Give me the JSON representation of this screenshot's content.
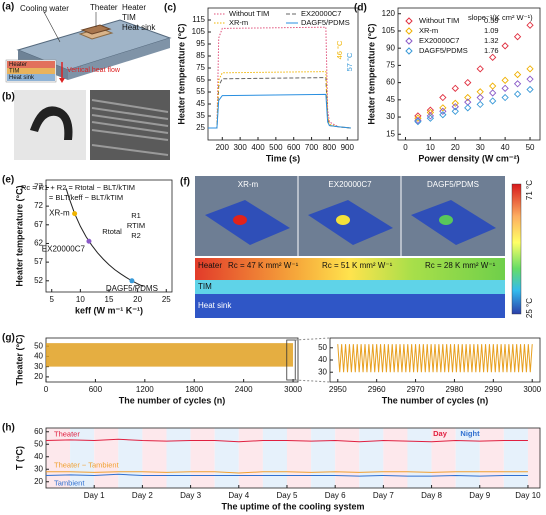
{
  "panels": {
    "a": {
      "label": "(a)",
      "cooling_water": "Cooling water",
      "t_heater": "Theater",
      "heater": "Heater",
      "tim": "TIM",
      "heat_sink": "Heat sink",
      "inset": [
        "Heater",
        "TIM",
        "Heat sink"
      ],
      "flow": "Vertical heat flow"
    },
    "b": {
      "label": "(b)"
    },
    "f": {
      "label": "(f)",
      "titles": [
        "XR-m",
        "EX20000C7",
        "DAGF5/PDMS"
      ],
      "max": "71 °C",
      "min": "25 °C",
      "layers": [
        "Heater",
        "TIM",
        "Heat sink"
      ],
      "rc": [
        "Rc = 47 K mm² W⁻¹",
        "Rc = 51 K mm² W⁻¹",
        "Rc = 28 K mm² W⁻¹"
      ]
    }
  },
  "chart_data": [
    {
      "type": "line",
      "panel": "(c)",
      "x_label": "Time (s)",
      "y_label": "Heater temperature (°C)",
      "xlim": [
        120,
        960
      ],
      "xticks": [
        200,
        300,
        400,
        500,
        600,
        700,
        800,
        900
      ],
      "ylim": [
        15,
        125
      ],
      "yticks": [
        25,
        35,
        45,
        55,
        65,
        75,
        85,
        95,
        105,
        115
      ],
      "legend": "top",
      "annotations": [
        "46 °C",
        "57 °C"
      ],
      "series": [
        {
          "name": "Without TIM",
          "color": "#e0507a",
          "dash": "dotted",
          "x": [
            120,
            170,
            180,
            200,
            780,
            790,
            800,
            850,
            920
          ],
          "values": [
            25,
            25,
            100,
            108,
            109,
            40,
            30,
            26,
            25
          ]
        },
        {
          "name": "EX20000C7",
          "color": "#666666",
          "dash": "dashed",
          "x": [
            120,
            170,
            180,
            200,
            780,
            790,
            800,
            850,
            920
          ],
          "values": [
            25,
            25,
            60,
            66,
            67,
            33,
            27,
            26,
            25
          ]
        },
        {
          "name": "XR-m",
          "color": "#f0b400",
          "dash": "dotted",
          "x": [
            120,
            170,
            180,
            200,
            780,
            790,
            800,
            850,
            920
          ],
          "values": [
            25,
            25,
            65,
            71,
            72,
            35,
            28,
            26,
            25
          ]
        },
        {
          "name": "DAGF5/PDMS",
          "color": "#2a8fe0",
          "dash": "solid",
          "x": [
            120,
            170,
            180,
            200,
            780,
            790,
            800,
            850,
            920
          ],
          "values": [
            25,
            25,
            48,
            52,
            53,
            30,
            27,
            26,
            25
          ]
        }
      ]
    },
    {
      "type": "scatter",
      "panel": "(d)",
      "x_label": "Power density (W cm⁻²)",
      "y_label": "Heater temperature (°C)",
      "xlim": [
        -3,
        54
      ],
      "xticks": [
        0,
        10,
        20,
        30,
        40,
        50
      ],
      "ylim": [
        10,
        125
      ],
      "yticks": [
        15,
        30,
        45,
        60,
        75,
        90,
        105,
        120
      ],
      "legend": "upper-left",
      "slope_title": "slope⁻¹(K cm² W⁻¹)",
      "slopes": [
        0.59,
        1.09,
        1.32,
        1.76
      ],
      "series": [
        {
          "name": "Without TIM",
          "color": "#e03040",
          "marker": "diamond",
          "x": [
            5,
            10,
            15,
            20,
            25,
            30,
            35,
            40,
            45,
            50
          ],
          "values": [
            31,
            36,
            47,
            55,
            60,
            72,
            82,
            92,
            100,
            110
          ]
        },
        {
          "name": "XR-m",
          "color": "#f0b000",
          "marker": "diamond",
          "x": [
            5,
            10,
            15,
            20,
            25,
            30,
            35,
            40,
            45,
            50
          ],
          "values": [
            29,
            34,
            38,
            42,
            47,
            52,
            57,
            62,
            67,
            72
          ]
        },
        {
          "name": "EX20000C7",
          "color": "#8a5ac8",
          "marker": "diamond",
          "x": [
            5,
            10,
            15,
            20,
            25,
            30,
            35,
            40,
            45,
            50
          ],
          "values": [
            27,
            31,
            35,
            39,
            43,
            47,
            51,
            55,
            59,
            63
          ]
        },
        {
          "name": "DAGF5/PDMS",
          "color": "#3a9ad8",
          "marker": "diamond",
          "x": [
            5,
            10,
            15,
            20,
            25,
            30,
            35,
            40,
            45,
            50
          ],
          "values": [
            26,
            29,
            32,
            35,
            38,
            41,
            44,
            47,
            50,
            54
          ]
        }
      ]
    },
    {
      "type": "scatter",
      "panel": "(e)",
      "x_label": "keff (W m⁻¹ K⁻¹)",
      "y_label": "Heater temperature (°C)",
      "xlim": [
        4,
        26
      ],
      "xticks": [
        5,
        10,
        15,
        20,
        25
      ],
      "ylim": [
        49,
        79
      ],
      "yticks": [
        52,
        57,
        62,
        67,
        72,
        77
      ],
      "legend": "points",
      "annotations": [
        "Rc = R1 + R2 = Rtotal − BLT/kTIM",
        "= BLT/keff − BLT/kTIM",
        "Rtotal",
        "R1",
        "RTIM",
        "R2"
      ],
      "series": [
        {
          "color": "#222222",
          "line": true,
          "x": [
            7.5,
            8,
            9,
            10,
            11,
            12,
            13,
            14,
            15,
            16,
            17,
            18,
            19,
            20,
            21
          ],
          "values": [
            76.8,
            74.3,
            70.0,
            66.6,
            63.8,
            61.5,
            59.5,
            57.8,
            56.3,
            55.0,
            53.9,
            52.9,
            52.0,
            51.2,
            50.5
          ]
        },
        {
          "name": "XR-m",
          "color": "#f0b400",
          "marker": "circle",
          "x": [
            9
          ],
          "values": [
            70
          ]
        },
        {
          "name": "EX20000C7",
          "color": "#8a5ac8",
          "marker": "circle",
          "x": [
            11.5
          ],
          "values": [
            62.6
          ]
        },
        {
          "name": "DAGF5/PDMS",
          "color": "#3a9ad8",
          "marker": "circle",
          "x": [
            19
          ],
          "values": [
            52
          ]
        }
      ]
    },
    {
      "type": "area",
      "panel": "(g)",
      "x_label": "The number of cycles (n)",
      "y_label": "Theater (°C)",
      "xlim": [
        0,
        3060
      ],
      "xticks": [
        0,
        600,
        1200,
        1800,
        2400,
        3000
      ],
      "ylim": [
        15,
        58
      ],
      "yticks": [
        20,
        30,
        40,
        50
      ],
      "series": [
        {
          "color": "#e0a020",
          "x": [
            0,
            3000
          ],
          "values": [
            53,
            53
          ],
          "low": [
            30,
            30
          ]
        }
      ]
    },
    {
      "type": "line",
      "x_label": "The number of cycles (n)",
      "xlim": [
        2948,
        3002
      ],
      "xticks": [
        2950,
        2960,
        2970,
        2980,
        2990,
        3000
      ],
      "ylim": [
        22,
        58
      ],
      "yticks": [
        30,
        40,
        50
      ],
      "series": [
        {
          "color": "#e8a020",
          "x": [
            2950,
            2950.5,
            2951,
            2951.5,
            2952,
            2952.5,
            2953,
            2953.5,
            2954,
            2954.5,
            2955,
            2955.5,
            2956,
            2956.5,
            2957,
            2957.5,
            2958,
            2958.5,
            2959,
            2959.5,
            2960,
            2960.5,
            2961,
            2961.5,
            2962,
            2962.5,
            2963,
            2963.5,
            2964,
            2964.5,
            2965,
            2965.5,
            2966,
            2966.5,
            2967,
            2967.5,
            2968,
            2968.5,
            2969,
            2969.5,
            2970,
            2970.5,
            2971,
            2971.5,
            2972,
            2972.5,
            2973,
            2973.5,
            2974,
            2974.5,
            2975,
            2975.5,
            2976,
            2976.5,
            2977,
            2977.5,
            2978,
            2978.5,
            2979,
            2979.5,
            2980,
            2980.5,
            2981,
            2981.5,
            2982,
            2982.5,
            2983,
            2983.5,
            2984,
            2984.5,
            2985,
            2985.5,
            2986,
            2986.5,
            2987,
            2987.5,
            2988,
            2988.5,
            2989,
            2989.5,
            2990,
            2990.5,
            2991,
            2991.5,
            2992,
            2992.5,
            2993,
            2993.5,
            2994,
            2994.5,
            2995,
            2995.5,
            2996,
            2996.5,
            2997,
            2997.5,
            2998,
            2998.5,
            2999,
            2999.5,
            3000
          ],
          "values": [
            53,
            30,
            53,
            30,
            53,
            30,
            53,
            30,
            53,
            30,
            53,
            30,
            53,
            30,
            53,
            30,
            53,
            30,
            53,
            30,
            53,
            30,
            53,
            30,
            53,
            30,
            53,
            30,
            53,
            30,
            53,
            30,
            53,
            30,
            53,
            30,
            53,
            30,
            53,
            30,
            53,
            30,
            53,
            30,
            53,
            30,
            53,
            30,
            53,
            30,
            53,
            30,
            53,
            30,
            53,
            30,
            53,
            30,
            53,
            30,
            53,
            30,
            53,
            30,
            53,
            30,
            53,
            30,
            53,
            30,
            53,
            30,
            53,
            30,
            53,
            30,
            53,
            30,
            53,
            30,
            53,
            30,
            53,
            30,
            53,
            30,
            53,
            30,
            53,
            30,
            53,
            30,
            53,
            30,
            53,
            30,
            53,
            30,
            53,
            30,
            53
          ]
        }
      ]
    },
    {
      "type": "line",
      "panel": "(h)",
      "x_label": "The uptime of  the cooling system",
      "y_label": "T (°C)",
      "xlim": [
        0,
        10.25
      ],
      "xticks": [
        {
          "value": 1,
          "label": "Day 1"
        },
        {
          "value": 2,
          "label": "Day 2"
        },
        {
          "value": 3,
          "label": "Day 3"
        },
        {
          "value": 4,
          "label": "Day 4"
        },
        {
          "value": 5,
          "label": "Day 5"
        },
        {
          "value": 6,
          "label": "Day 6"
        },
        {
          "value": 7,
          "label": "Day 7"
        },
        {
          "value": 8,
          "label": "Day 8"
        },
        {
          "value": 9,
          "label": "Day 9"
        },
        {
          "value": 10,
          "label": "Day 10"
        }
      ],
      "ylim": [
        15,
        63
      ],
      "yticks": [
        20,
        30,
        40,
        50,
        60
      ],
      "legend": "inline",
      "annotations": [
        "Day",
        "Night"
      ],
      "series": [
        {
          "name": "Theater",
          "color": "#e02040",
          "x": [
            0,
            0.5,
            1,
            1.5,
            2,
            2.5,
            3,
            3.5,
            4,
            4.5,
            5,
            5.5,
            6,
            6.5,
            7,
            7.5,
            8,
            8.5,
            9,
            9.5,
            10
          ],
          "values": [
            53,
            53.5,
            53,
            54,
            53,
            52.5,
            53,
            53,
            52,
            53,
            53,
            52.5,
            53,
            52,
            53,
            52.5,
            52,
            53,
            52.5,
            53,
            53
          ]
        },
        {
          "name": "Theater − Tambient",
          "color": "#f0a030",
          "x": [
            0,
            0.5,
            1,
            1.5,
            2,
            2.5,
            3,
            3.5,
            4,
            4.5,
            5,
            5.5,
            6,
            6.5,
            7,
            7.5,
            8,
            8.5,
            9,
            9.5,
            10
          ],
          "values": [
            28,
            28,
            27.5,
            28,
            28,
            27.5,
            28,
            28,
            27,
            28,
            28,
            27.5,
            28,
            27.5,
            28,
            28,
            27.5,
            28,
            28,
            28,
            28
          ]
        },
        {
          "name": "Tambient",
          "color": "#3070d0",
          "x": [
            0,
            0.5,
            1,
            1.5,
            2,
            2.5,
            3,
            3.5,
            4,
            4.5,
            5,
            5.5,
            6,
            6.5,
            7,
            7.5,
            8,
            8.5,
            9,
            9.5,
            10
          ],
          "values": [
            25,
            25.5,
            25,
            26,
            25,
            25,
            25,
            25,
            25,
            25,
            25,
            25,
            25,
            24.5,
            25,
            24.5,
            24.5,
            25,
            24.5,
            25,
            25
          ]
        }
      ]
    }
  ]
}
